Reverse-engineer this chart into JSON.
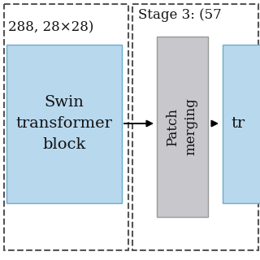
{
  "bg_color": "#ffffff",
  "left_stage_label": "288, 28×28)",
  "right_stage_label": "Stage 3: (57",
  "swin_block_label": "Swin\ntransformer\nblock",
  "patch_merge_label": "Patch\nmerging",
  "tr_label": "tr",
  "swin_box_color": "#b8d8ee",
  "patch_box_color": "#c8c8cc",
  "tr_box_color": "#b8d8ee",
  "dashed_color": "#555555",
  "arrow_color": "#000000",
  "text_color": "#111111",
  "font_size_stage": 12,
  "font_size_block": 14,
  "font_size_patch": 12
}
